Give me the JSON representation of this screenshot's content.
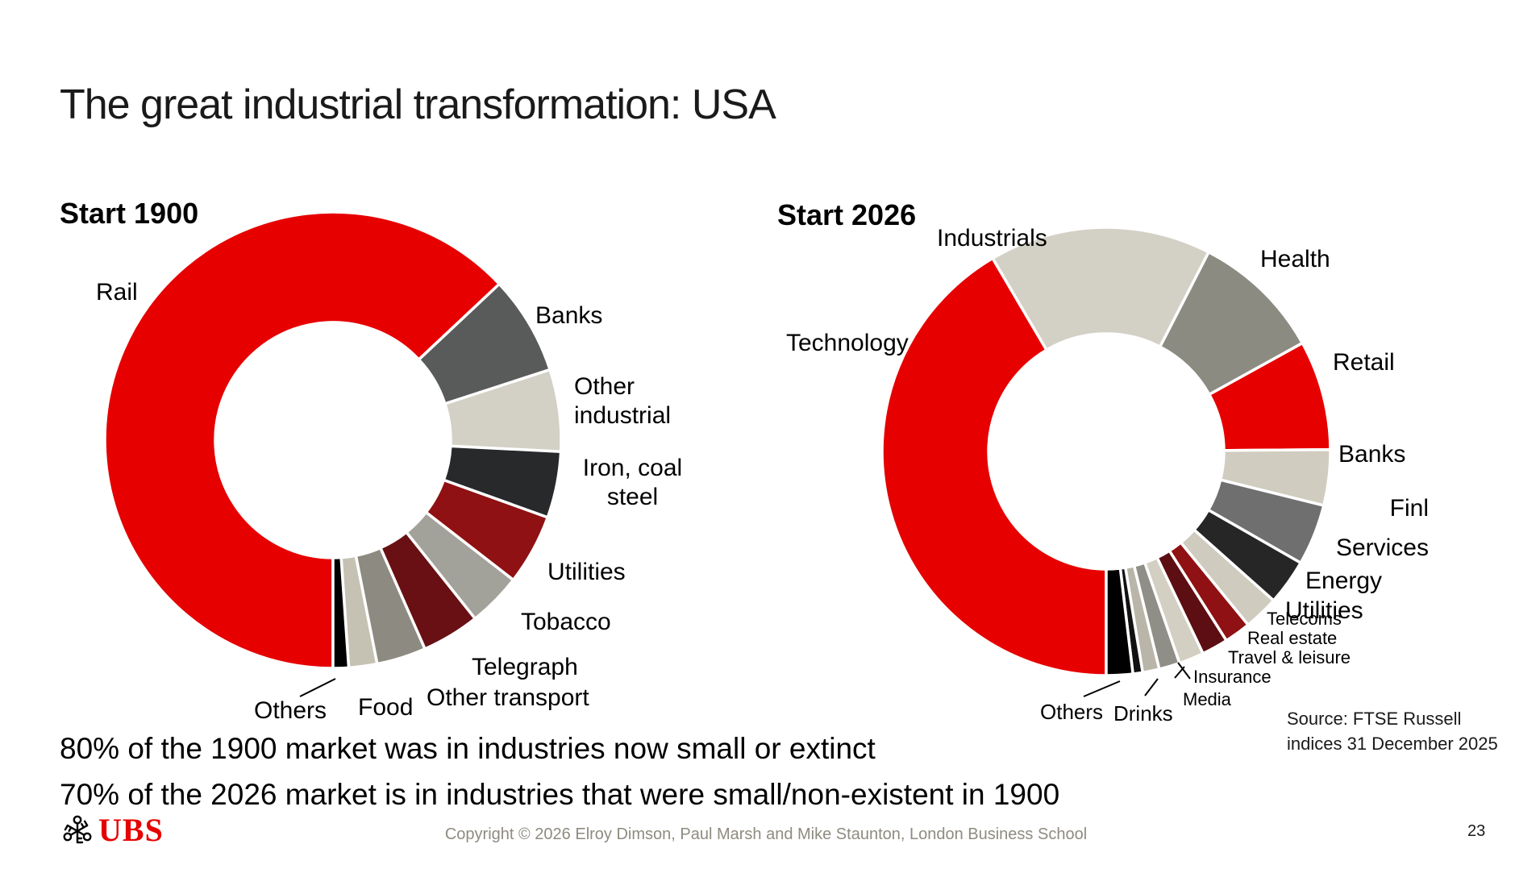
{
  "slide": {
    "title": "The great industrial transformation: USA",
    "statement_1900": "80% of the 1900 market was in industries now small or extinct",
    "statement_2026": "70% of the 2026 market is in industries that were small/non-existent in 1900",
    "footer": {
      "logo_text": "UBS",
      "logo_icon": "ubs-three-keys",
      "copyright": "Copyright © 2026 Elroy Dimson, Paul Marsh and Mike Staunton, London Business School",
      "page_number": "23"
    },
    "colors": {
      "brand_red": "#e60000",
      "text": "#1a1a1a",
      "muted_text": "#8f8b80"
    }
  },
  "chart_data": [
    {
      "type": "pie",
      "donut": true,
      "title": "Start 1900",
      "unit": "% of market capitalization (estimated from chart)",
      "start_angle_deg": 180,
      "direction": "clockwise",
      "legend_position": "outside-labels",
      "series": [
        {
          "label": "Rail",
          "value": 63.0,
          "color": "#e60000"
        },
        {
          "label": "Banks",
          "value": 7.0,
          "color": "#595a5a"
        },
        {
          "label": "Other industrial",
          "value": 5.8,
          "color": "#d3d0c5"
        },
        {
          "label": "Iron, coal steel",
          "value": 4.7,
          "color": "#27292b"
        },
        {
          "label": "Utilities",
          "value": 5.0,
          "color": "#8f1113"
        },
        {
          "label": "Tobacco",
          "value": 3.8,
          "color": "#a3a29a"
        },
        {
          "label": "Telegraph",
          "value": 4.1,
          "color": "#681013"
        },
        {
          "label": "Other transport",
          "value": 3.5,
          "color": "#8d8b81"
        },
        {
          "label": "Food",
          "value": 2.0,
          "color": "#c6c2b3"
        },
        {
          "label": "Others",
          "value": 1.1,
          "color": "#000000"
        }
      ]
    },
    {
      "type": "pie",
      "donut": true,
      "title": "Start 2026",
      "unit": "% of market capitalization (estimated from chart)",
      "start_angle_deg": 180,
      "direction": "clockwise",
      "legend_position": "outside-labels",
      "source_note": {
        "line1": "Source: FTSE Russell",
        "line2": "indices 31 December 2025"
      },
      "series": [
        {
          "label": "Technology",
          "value": 41.5,
          "color": "#e60000"
        },
        {
          "label": "Industrials",
          "value": 16.0,
          "color": "#d3d0c5"
        },
        {
          "label": "Health",
          "value": 9.4,
          "color": "#8b8b82"
        },
        {
          "label": "Retail",
          "value": 7.9,
          "color": "#e60000"
        },
        {
          "label": "Banks",
          "value": 4.0,
          "color": "#d0ccbf"
        },
        {
          "label": "Finl Services",
          "value": 4.4,
          "color": "#6f6f6f"
        },
        {
          "label": "Energy",
          "value": 3.3,
          "color": "#262626"
        },
        {
          "label": "Utilities",
          "value": 2.5,
          "color": "#cfcbbe"
        },
        {
          "label": "Telecoms",
          "value": 1.9,
          "color": "#8f1113"
        },
        {
          "label": "Real estate",
          "value": 1.9,
          "color": "#5c0e12"
        },
        {
          "label": "Travel & leisure",
          "value": 1.8,
          "color": "#d3cfc2"
        },
        {
          "label": "Insurance",
          "value": 1.5,
          "color": "#8f8f87"
        },
        {
          "label": "Media",
          "value": 1.2,
          "color": "#b9b5a8"
        },
        {
          "label": "Drinks",
          "value": 0.7,
          "color": "#111111"
        },
        {
          "label": "Others",
          "value": 1.9,
          "color": "#000000"
        }
      ]
    }
  ]
}
